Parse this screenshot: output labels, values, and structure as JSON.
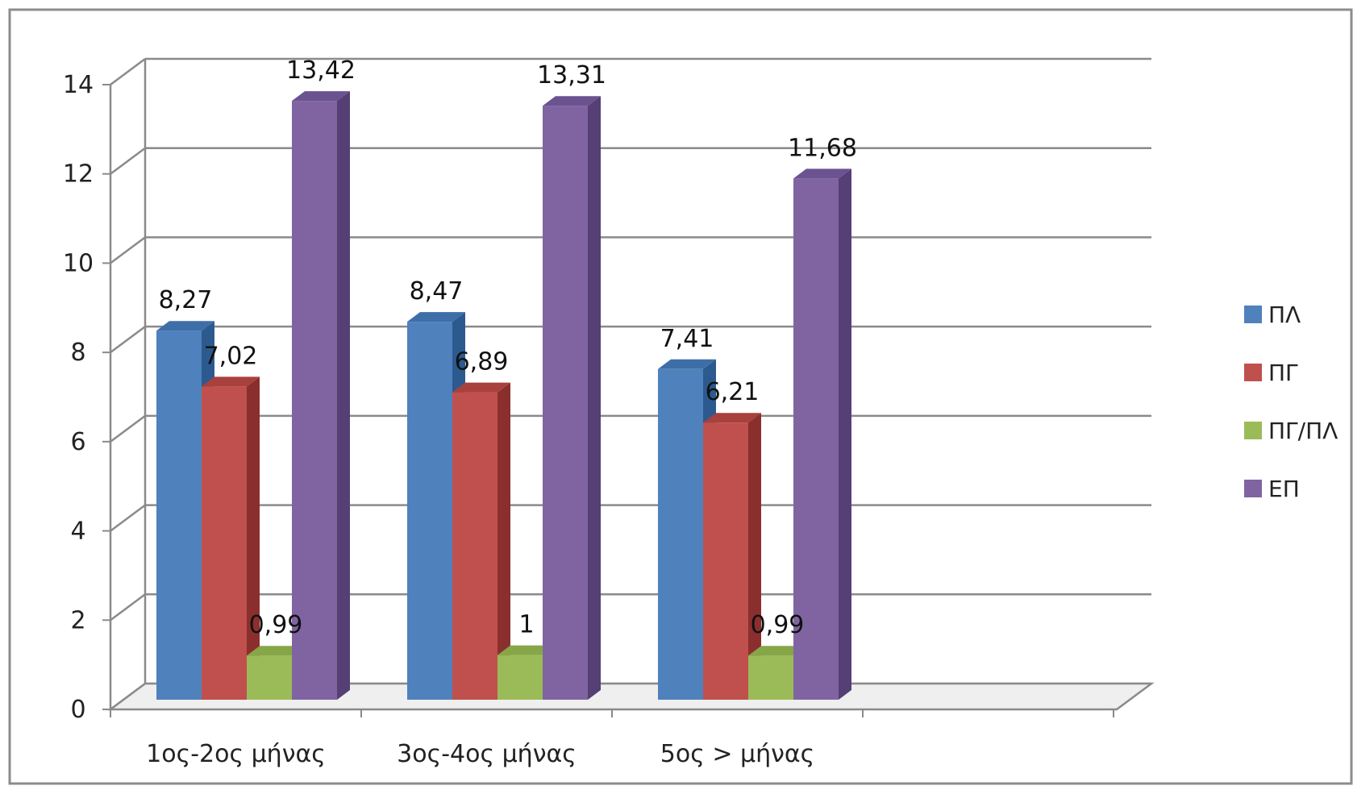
{
  "chart_data": {
    "type": "bar",
    "style": "3d-clustered-column",
    "categories": [
      "1ος-2ος μήνας",
      "3ος-4ος μήνας",
      "5ος > μήνας"
    ],
    "series": [
      {
        "name": "ΠΛ",
        "values": [
          8.27,
          8.47,
          7.41
        ],
        "labels": [
          "8,27",
          "8,47",
          "7,41"
        ],
        "color": "#4f81bd",
        "side": "#2c5a8f",
        "top": "#3e6ea8"
      },
      {
        "name": "ΠΓ",
        "values": [
          7.02,
          6.89,
          6.21
        ],
        "labels": [
          "7,02",
          "6,89",
          "6,21"
        ],
        "color": "#c0504d",
        "side": "#8a2f2d",
        "top": "#a8403d"
      },
      {
        "name": "ΠΓ/ΠΛ",
        "values": [
          0.99,
          1,
          0.99
        ],
        "labels": [
          "0,99",
          "1",
          "0,99"
        ],
        "color": "#9bbb59",
        "side": "#6b8a35",
        "top": "#86a648"
      },
      {
        "name": "ΕΠ",
        "values": [
          13.42,
          13.31,
          11.68
        ],
        "labels": [
          "13,42",
          "13,31",
          "11,68"
        ],
        "color": "#8064a2",
        "side": "#553f74",
        "top": "#6b5290"
      }
    ],
    "yticks": [
      "0",
      "2",
      "4",
      "6",
      "8",
      "10",
      "12",
      "14"
    ],
    "ylim": [
      0,
      14
    ],
    "title": "",
    "xlabel": "",
    "ylabel": "",
    "grid": true,
    "legend_position": "right"
  }
}
